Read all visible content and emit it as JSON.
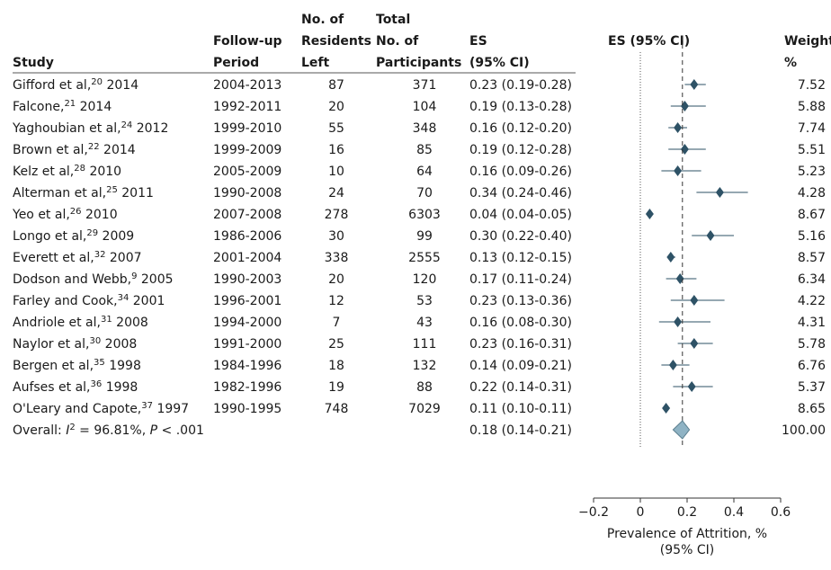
{
  "chart_data": {
    "type": "forest",
    "headers": {
      "study": "Study",
      "period": [
        "Follow-up",
        "Period"
      ],
      "left": [
        "No. of",
        "Residents",
        "Left"
      ],
      "total": [
        "Total",
        "No. of",
        "Participants"
      ],
      "es": [
        "ES",
        "(95% CI)"
      ],
      "plot": "ES (95% CI)",
      "weight": [
        "Weight,",
        "%"
      ]
    },
    "studies": [
      {
        "name": "Gifford et al,",
        "ref": "20",
        "year": "2014",
        "period": "2004-2013",
        "left": "87",
        "total": "371",
        "es_text": "0.23 (0.19-0.28)",
        "es": 0.23,
        "lo": 0.19,
        "hi": 0.28,
        "weight": "7.52"
      },
      {
        "name": "Falcone,",
        "ref": "21",
        "year": "2014",
        "period": "1992-2011",
        "left": "20",
        "total": "104",
        "es_text": "0.19 (0.13-0.28)",
        "es": 0.19,
        "lo": 0.13,
        "hi": 0.28,
        "weight": "5.88"
      },
      {
        "name": "Yaghoubian et al,",
        "ref": "24",
        "year": "2012",
        "period": "1999-2010",
        "left": "55",
        "total": "348",
        "es_text": "0.16 (0.12-0.20)",
        "es": 0.16,
        "lo": 0.12,
        "hi": 0.2,
        "weight": "7.74"
      },
      {
        "name": "Brown et al,",
        "ref": "22",
        "year": "2014",
        "period": "1999-2009",
        "left": "16",
        "total": "85",
        "es_text": "0.19 (0.12-0.28)",
        "es": 0.19,
        "lo": 0.12,
        "hi": 0.28,
        "weight": "5.51"
      },
      {
        "name": "Kelz et al,",
        "ref": "28",
        "year": "2010",
        "period": "2005-2009",
        "left": "10",
        "total": "64",
        "es_text": "0.16 (0.09-0.26)",
        "es": 0.16,
        "lo": 0.09,
        "hi": 0.26,
        "weight": "5.23"
      },
      {
        "name": "Alterman et al,",
        "ref": "25",
        "year": "2011",
        "period": "1990-2008",
        "left": "24",
        "total": "70",
        "es_text": "0.34 (0.24-0.46)",
        "es": 0.34,
        "lo": 0.24,
        "hi": 0.46,
        "weight": "4.28"
      },
      {
        "name": "Yeo et al,",
        "ref": "26",
        "year": "2010",
        "period": "2007-2008",
        "left": "278",
        "total": "6303",
        "es_text": "0.04 (0.04-0.05)",
        "es": 0.04,
        "lo": 0.04,
        "hi": 0.05,
        "weight": "8.67"
      },
      {
        "name": "Longo et al,",
        "ref": "29",
        "year": "2009",
        "period": "1986-2006",
        "left": "30",
        "total": "99",
        "es_text": "0.30 (0.22-0.40)",
        "es": 0.3,
        "lo": 0.22,
        "hi": 0.4,
        "weight": "5.16"
      },
      {
        "name": "Everett et al,",
        "ref": "32",
        "year": "2007",
        "period": "2001-2004",
        "left": "338",
        "total": "2555",
        "es_text": "0.13 (0.12-0.15)",
        "es": 0.13,
        "lo": 0.12,
        "hi": 0.15,
        "weight": "8.57"
      },
      {
        "name": "Dodson and Webb,",
        "ref": "9",
        "year": "2005",
        "period": "1990-2003",
        "left": "20",
        "total": "120",
        "es_text": "0.17 (0.11-0.24)",
        "es": 0.17,
        "lo": 0.11,
        "hi": 0.24,
        "weight": "6.34"
      },
      {
        "name": "Farley and Cook,",
        "ref": "34",
        "year": "2001",
        "period": "1996-2001",
        "left": "12",
        "total": "53",
        "es_text": "0.23 (0.13-0.36)",
        "es": 0.23,
        "lo": 0.13,
        "hi": 0.36,
        "weight": "4.22"
      },
      {
        "name": "Andriole et al,",
        "ref": "31",
        "year": "2008",
        "period": "1994-2000",
        "left": "7",
        "total": "43",
        "es_text": "0.16 (0.08-0.30)",
        "es": 0.16,
        "lo": 0.08,
        "hi": 0.3,
        "weight": "4.31"
      },
      {
        "name": "Naylor et al,",
        "ref": "30",
        "year": "2008",
        "period": "1991-2000",
        "left": "25",
        "total": "111",
        "es_text": "0.23 (0.16-0.31)",
        "es": 0.23,
        "lo": 0.16,
        "hi": 0.31,
        "weight": "5.78"
      },
      {
        "name": "Bergen et al,",
        "ref": "35",
        "year": "1998",
        "period": "1984-1996",
        "left": "18",
        "total": "132",
        "es_text": "0.14 (0.09-0.21)",
        "es": 0.14,
        "lo": 0.09,
        "hi": 0.21,
        "weight": "6.76"
      },
      {
        "name": "Aufses et al,",
        "ref": "36",
        "year": "1998",
        "period": "1982-1996",
        "left": "19",
        "total": "88",
        "es_text": "0.22 (0.14-0.31)",
        "es": 0.22,
        "lo": 0.14,
        "hi": 0.31,
        "weight": "5.37"
      },
      {
        "name": "O'Leary and Capote,",
        "ref": "37",
        "year": "1997",
        "period": "1990-1995",
        "left": "748",
        "total": "7029",
        "es_text": "0.11 (0.10-0.11)",
        "es": 0.11,
        "lo": 0.1,
        "hi": 0.11,
        "weight": "8.65"
      }
    ],
    "overall": {
      "label_prefix": "Overall: ",
      "i2_symbol": "I",
      "i2_sup": "2",
      "i2_rest": " = 96.81%, ",
      "p_symbol": "P",
      "p_rest": " < .001",
      "es_text": "0.18 (0.14-0.21)",
      "es": 0.18,
      "lo": 0.14,
      "hi": 0.21,
      "weight": "100.00"
    },
    "x_axis": {
      "range": [
        -0.2,
        0.6
      ],
      "ticks": [
        -0.2,
        0,
        0.2,
        0.4,
        0.6
      ],
      "tick_labels": [
        "−0.2",
        "0",
        "0.2",
        "0.4",
        "0.6"
      ],
      "label": [
        "Prevalence of Attrition, %",
        "(95% CI)"
      ]
    },
    "reference_lines": {
      "null": 0,
      "overall": 0.18
    },
    "colors": {
      "marker": "#2e5266",
      "overall_fill": "#8fb3c4",
      "overall_stroke": "#5b7f8f",
      "ci_line": "#2e5266",
      "text": "#1a1a1a",
      "rule": "#555555"
    }
  }
}
